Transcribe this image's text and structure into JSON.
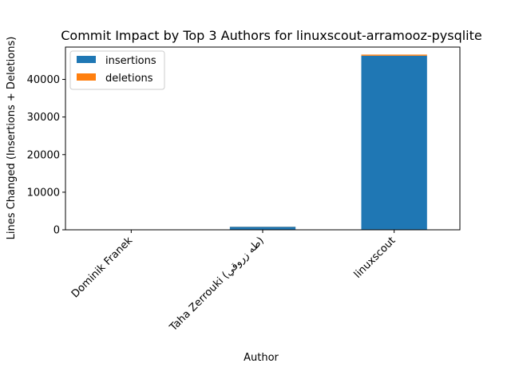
{
  "chart_data": {
    "type": "bar",
    "stacked": true,
    "title": "Commit Impact by Top 3 Authors for linuxscout-arramooz-pysqlite",
    "xlabel": "Author",
    "ylabel": "Lines Changed (Insertions + Deletions)",
    "categories": [
      "Dominik Franek",
      "Taha Zerrouki (طه زروقي)",
      "linuxscout"
    ],
    "series": [
      {
        "name": "insertions",
        "values": [
          20,
          800,
          46300
        ],
        "color": "#1f77b4"
      },
      {
        "name": "deletions",
        "values": [
          0,
          30,
          300
        ],
        "color": "#ff7f0e"
      }
    ],
    "ylim": [
      0,
      48600
    ],
    "yticks": [
      0,
      10000,
      20000,
      30000,
      40000
    ],
    "grid": false,
    "legend_position": "top-left"
  }
}
